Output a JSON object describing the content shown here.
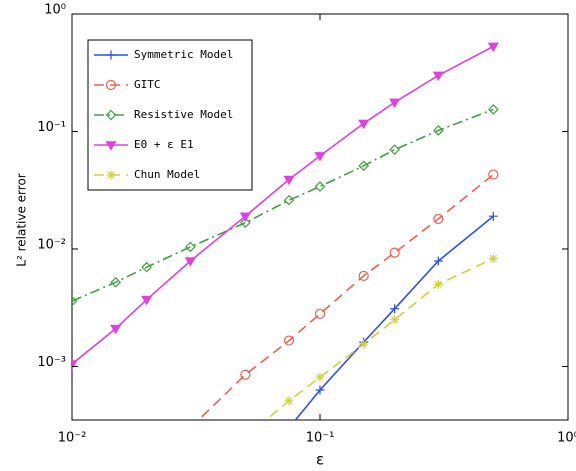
{
  "chart_data": {
    "type": "line",
    "xlabel": "ε",
    "ylabel": "L² relative error",
    "xscale": "log",
    "yscale": "log",
    "x": [
      0.01,
      0.015,
      0.02,
      0.03,
      0.05,
      0.075,
      0.1,
      0.15,
      0.2,
      0.3,
      0.5
    ],
    "xlim": [
      0.01,
      1
    ],
    "ylim": [
      0.00035,
      1
    ],
    "xticks": [
      {
        "value": 0.01,
        "label": "10⁻²"
      },
      {
        "value": 0.1,
        "label": "10⁻¹"
      },
      {
        "value": 1,
        "label": "10⁰"
      }
    ],
    "yticks": [
      {
        "value": 0.001,
        "label": "10⁻³"
      },
      {
        "value": 0.01,
        "label": "10⁻²"
      },
      {
        "value": 0.1,
        "label": "10⁻¹"
      },
      {
        "value": 1,
        "label": "10⁰"
      }
    ],
    "legend": "upper left",
    "series": [
      {
        "name": "Symmetric Model",
        "color": "#3050e0",
        "marker": "plus",
        "dash": "solid",
        "values": [
          null,
          null,
          null,
          null,
          null,
          0.0003,
          0.00063,
          0.00161,
          0.0031,
          0.0079,
          0.019
        ]
      },
      {
        "name": "GITC",
        "color": "#f06050",
        "marker": "circle",
        "dash": "dashed",
        "values": [
          null,
          null,
          null,
          0.0003,
          0.00085,
          0.00166,
          0.0028,
          0.0059,
          0.0093,
          0.018,
          0.043
        ]
      },
      {
        "name": "Resistive Model",
        "color": "#40a040",
        "marker": "diamond",
        "dash": "dashdot",
        "values": [
          0.0036,
          0.0052,
          0.007,
          0.0104,
          0.0167,
          0.026,
          0.034,
          0.051,
          0.07,
          0.102,
          0.154
        ]
      },
      {
        "name": "E0 + ε E1",
        "color": "#e040e0",
        "marker": "triangle-down",
        "dash": "solid",
        "values": [
          0.00105,
          0.0021,
          0.0037,
          0.0079,
          0.019,
          0.039,
          0.062,
          0.117,
          0.177,
          0.3,
          0.53
        ]
      },
      {
        "name": "Chun Model",
        "color": "#d0d040",
        "marker": "star",
        "dash": "dashed",
        "values": [
          null,
          null,
          null,
          null,
          0.00025,
          0.00051,
          0.00081,
          0.00155,
          0.0025,
          0.005,
          0.0083
        ]
      }
    ]
  }
}
